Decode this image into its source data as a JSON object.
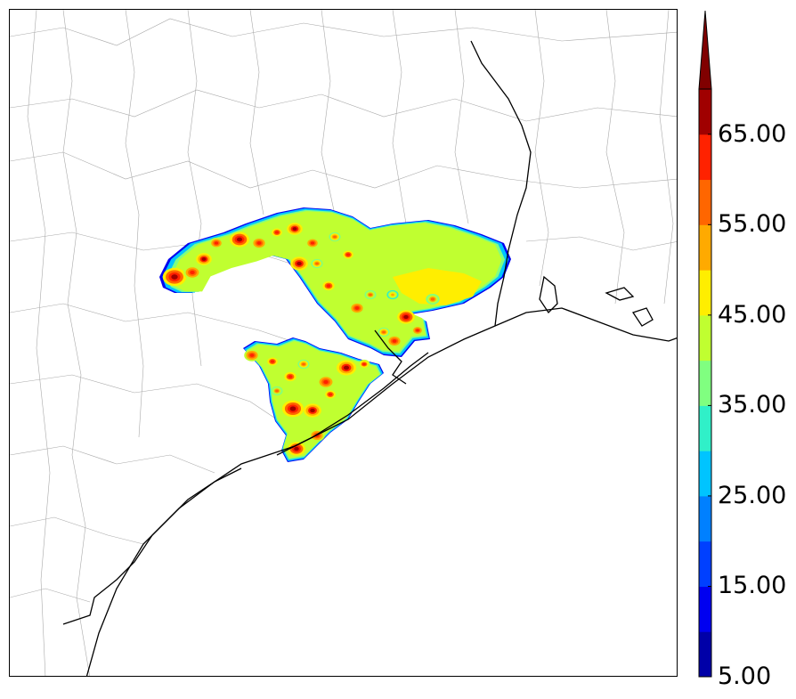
{
  "map": {
    "county_line_color": "#a9a9a9",
    "coast_line_color": "#000000",
    "icon": "precipitation-contour-map"
  },
  "colorbar": {
    "min_value": 5.0,
    "max_value": 70.0,
    "extend": "max",
    "levels": [
      5,
      10,
      15,
      20,
      25,
      30,
      35,
      40,
      45,
      50,
      55,
      60,
      65,
      70
    ],
    "colors": [
      "#0000a8",
      "#0000f0",
      "#0040ff",
      "#0080ff",
      "#00c4ff",
      "#30f0c8",
      "#80ff80",
      "#c0ff30",
      "#ffee00",
      "#ffaa00",
      "#ff6600",
      "#ff2200",
      "#a00000"
    ],
    "extend_color": "#800000",
    "tick_labels": [
      "5.00",
      "15.00",
      "25.00",
      "35.00",
      "45.00",
      "55.00",
      "65.00"
    ]
  }
}
